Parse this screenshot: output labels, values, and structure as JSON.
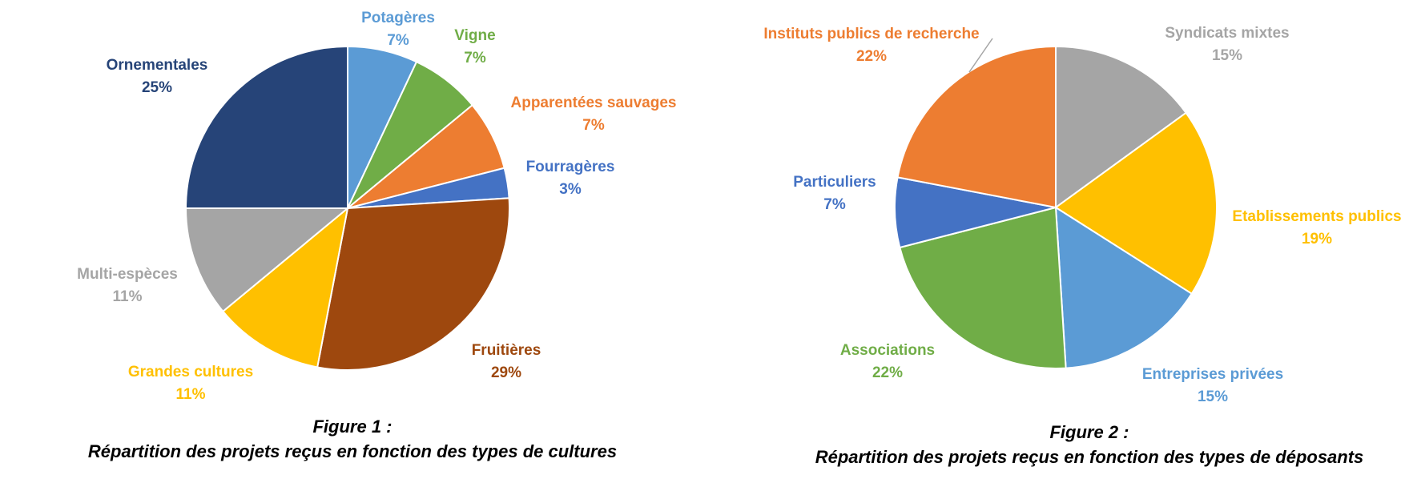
{
  "chart_data": [
    {
      "type": "pie",
      "caption": [
        "Figure 1 :",
        "Répartition des projets reçus en fonction des types de cultures"
      ],
      "slices": [
        {
          "label": "Potagères",
          "value": 7,
          "display": "7%",
          "color": "#5B9BD5"
        },
        {
          "label": "Vigne",
          "value": 7,
          "display": "7%",
          "color": "#70AD47"
        },
        {
          "label": "Apparentées sauvages",
          "value": 7,
          "display": "7%",
          "color": "#ED7D31"
        },
        {
          "label": "Fourragères",
          "value": 3,
          "display": "3%",
          "color": "#4472C4"
        },
        {
          "label": "Fruitières",
          "value": 29,
          "display": "29%",
          "color": "#9E480E"
        },
        {
          "label": "Grandes cultures",
          "value": 11,
          "display": "11%",
          "color": "#FFC000"
        },
        {
          "label": "Multi-espèces",
          "value": 11,
          "display": "11%",
          "color": "#A5A5A5"
        },
        {
          "label": "Ornementales",
          "value": 25,
          "display": "25%",
          "color": "#264478"
        }
      ]
    },
    {
      "type": "pie",
      "caption": [
        "Figure 2 :",
        "Répartition des projets reçus en fonction des types de déposants"
      ],
      "slices": [
        {
          "label": "Syndicats mixtes",
          "value": 15,
          "display": "15%",
          "color": "#A5A5A5"
        },
        {
          "label": "Etablissements publics",
          "value": 19,
          "display": "19%",
          "color": "#FFC000"
        },
        {
          "label": "Entreprises privées",
          "value": 15,
          "display": "15%",
          "color": "#5B9BD5"
        },
        {
          "label": "Associations",
          "value": 22,
          "display": "22%",
          "color": "#70AD47"
        },
        {
          "label": "Particuliers",
          "value": 7,
          "display": "7%",
          "color": "#4472C4"
        },
        {
          "label": "Instituts publics de recherche",
          "value": 22,
          "display": "22%",
          "color": "#ED7D31"
        }
      ]
    }
  ]
}
